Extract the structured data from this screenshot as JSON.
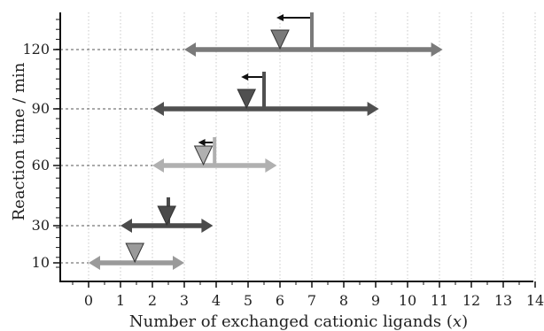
{
  "chart_data": {
    "type": "range",
    "xlabel": "Number of exchanged cationic ligands (",
    "xlabel_var": "x",
    "xlabel_end": ")",
    "ylabel": "Reaction time / min",
    "xlim": [
      -1,
      14
    ],
    "x_ticks": [
      0,
      1,
      2,
      3,
      4,
      5,
      6,
      7,
      8,
      9,
      10,
      11,
      12,
      13,
      14
    ],
    "y_ticks": [
      10,
      30,
      60,
      90,
      120
    ],
    "grid": "vertical dotted lines at integer x",
    "series": [
      {
        "time": 10,
        "range": [
          0,
          3
        ],
        "mean": 1.45,
        "marker_line": null,
        "color": "#9a9a9a"
      },
      {
        "time": 30,
        "range": [
          1,
          3.9
        ],
        "mean": 2.45,
        "marker_line": 2.5,
        "color": "#4a4a4a"
      },
      {
        "time": 60,
        "range": [
          2,
          5.9
        ],
        "mean": 3.6,
        "marker_line": 3.95,
        "color": "#b0b0b0"
      },
      {
        "time": 90,
        "range": [
          2,
          9.1
        ],
        "mean": 4.95,
        "marker_line": 5.5,
        "color": "#505050"
      },
      {
        "time": 120,
        "range": [
          3,
          11.1
        ],
        "mean": 6,
        "marker_line": 7,
        "color": "#7a7a7a"
      }
    ]
  }
}
